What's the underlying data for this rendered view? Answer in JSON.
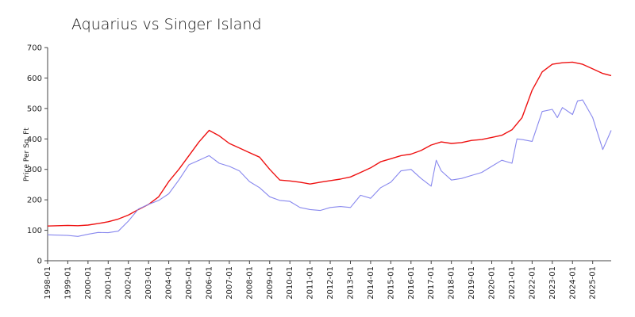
{
  "chart_data": {
    "type": "line",
    "title": "Aquarius vs Singer Island",
    "xlabel": "",
    "ylabel": "Price Per Sq. Ft",
    "ylim": [
      0,
      700
    ],
    "yticks": [
      "0",
      "100",
      "200",
      "300",
      "400",
      "500",
      "600",
      "700"
    ],
    "xticks": [
      "1998-01",
      "1999-01",
      "2000-01",
      "2001-01",
      "2002-01",
      "2003-01",
      "2004-01",
      "2005-01",
      "2006-01",
      "2007-01",
      "2008-01",
      "2009-01",
      "2010-01",
      "2011-01",
      "2012-01",
      "2013-01",
      "2014-01",
      "2015-01",
      "2016-01",
      "2017-01",
      "2018-01",
      "2019-01",
      "2020-01",
      "2021-01",
      "2022-01",
      "2023-01",
      "2024-01",
      "2025-01"
    ],
    "grid": false,
    "legend": "none",
    "series": [
      {
        "color": "#ee1111",
        "points": [
          [
            "1998-01",
            114
          ],
          [
            "1999-01",
            116
          ],
          [
            "1999-07",
            115
          ],
          [
            "2000-01",
            117
          ],
          [
            "2000-07",
            122
          ],
          [
            "2001-01",
            128
          ],
          [
            "2001-07",
            137
          ],
          [
            "2002-01",
            150
          ],
          [
            "2002-07",
            168
          ],
          [
            "2003-01",
            185
          ],
          [
            "2003-07",
            210
          ],
          [
            "2004-01",
            260
          ],
          [
            "2004-07",
            300
          ],
          [
            "2005-01",
            345
          ],
          [
            "2005-07",
            390
          ],
          [
            "2006-01",
            428
          ],
          [
            "2006-07",
            410
          ],
          [
            "2007-01",
            385
          ],
          [
            "2007-07",
            370
          ],
          [
            "2008-01",
            355
          ],
          [
            "2008-07",
            340
          ],
          [
            "2009-01",
            300
          ],
          [
            "2009-07",
            265
          ],
          [
            "2010-01",
            262
          ],
          [
            "2010-07",
            258
          ],
          [
            "2011-01",
            252
          ],
          [
            "2011-07",
            258
          ],
          [
            "2012-01",
            263
          ],
          [
            "2012-07",
            268
          ],
          [
            "2013-01",
            275
          ],
          [
            "2013-07",
            290
          ],
          [
            "2014-01",
            305
          ],
          [
            "2014-07",
            325
          ],
          [
            "2015-01",
            335
          ],
          [
            "2015-07",
            345
          ],
          [
            "2016-01",
            350
          ],
          [
            "2016-07",
            362
          ],
          [
            "2017-01",
            380
          ],
          [
            "2017-07",
            390
          ],
          [
            "2018-01",
            385
          ],
          [
            "2018-07",
            388
          ],
          [
            "2019-01",
            395
          ],
          [
            "2019-07",
            398
          ],
          [
            "2020-01",
            405
          ],
          [
            "2020-07",
            412
          ],
          [
            "2021-01",
            430
          ],
          [
            "2021-07",
            470
          ],
          [
            "2022-01",
            560
          ],
          [
            "2022-07",
            620
          ],
          [
            "2023-01",
            645
          ],
          [
            "2023-07",
            650
          ],
          [
            "2024-01",
            652
          ],
          [
            "2024-07",
            645
          ],
          [
            "2025-01",
            630
          ],
          [
            "2025-07",
            615
          ],
          [
            "2025-12",
            608
          ]
        ]
      },
      {
        "color": "#8888ee",
        "points": [
          [
            "1998-01",
            85
          ],
          [
            "1998-07",
            84
          ],
          [
            "1999-01",
            83
          ],
          [
            "1999-07",
            80
          ],
          [
            "2000-01",
            87
          ],
          [
            "2000-07",
            93
          ],
          [
            "2001-01",
            92
          ],
          [
            "2001-07",
            97
          ],
          [
            "2002-01",
            130
          ],
          [
            "2002-07",
            170
          ],
          [
            "2003-01",
            185
          ],
          [
            "2003-07",
            198
          ],
          [
            "2004-01",
            220
          ],
          [
            "2004-07",
            265
          ],
          [
            "2005-01",
            315
          ],
          [
            "2005-07",
            330
          ],
          [
            "2006-01",
            345
          ],
          [
            "2006-07",
            320
          ],
          [
            "2007-01",
            310
          ],
          [
            "2007-07",
            295
          ],
          [
            "2008-01",
            260
          ],
          [
            "2008-07",
            240
          ],
          [
            "2009-01",
            210
          ],
          [
            "2009-07",
            198
          ],
          [
            "2010-01",
            195
          ],
          [
            "2010-07",
            175
          ],
          [
            "2011-01",
            168
          ],
          [
            "2011-07",
            165
          ],
          [
            "2012-01",
            175
          ],
          [
            "2012-07",
            178
          ],
          [
            "2013-01",
            175
          ],
          [
            "2013-07",
            215
          ],
          [
            "2014-01",
            205
          ],
          [
            "2014-07",
            240
          ],
          [
            "2015-01",
            258
          ],
          [
            "2015-07",
            295
          ],
          [
            "2016-01",
            300
          ],
          [
            "2016-07",
            270
          ],
          [
            "2017-01",
            245
          ],
          [
            "2017-04",
            330
          ],
          [
            "2017-07",
            295
          ],
          [
            "2018-01",
            265
          ],
          [
            "2018-07",
            270
          ],
          [
            "2019-01",
            280
          ],
          [
            "2019-07",
            290
          ],
          [
            "2020-01",
            310
          ],
          [
            "2020-07",
            330
          ],
          [
            "2021-01",
            320
          ],
          [
            "2021-04",
            400
          ],
          [
            "2021-07",
            398
          ],
          [
            "2022-01",
            392
          ],
          [
            "2022-07",
            490
          ],
          [
            "2023-01",
            497
          ],
          [
            "2023-04",
            470
          ],
          [
            "2023-07",
            503
          ],
          [
            "2024-01",
            480
          ],
          [
            "2024-04",
            525
          ],
          [
            "2024-07",
            528
          ],
          [
            "2025-01",
            470
          ],
          [
            "2025-07",
            365
          ],
          [
            "2025-12",
            428
          ]
        ]
      }
    ]
  }
}
